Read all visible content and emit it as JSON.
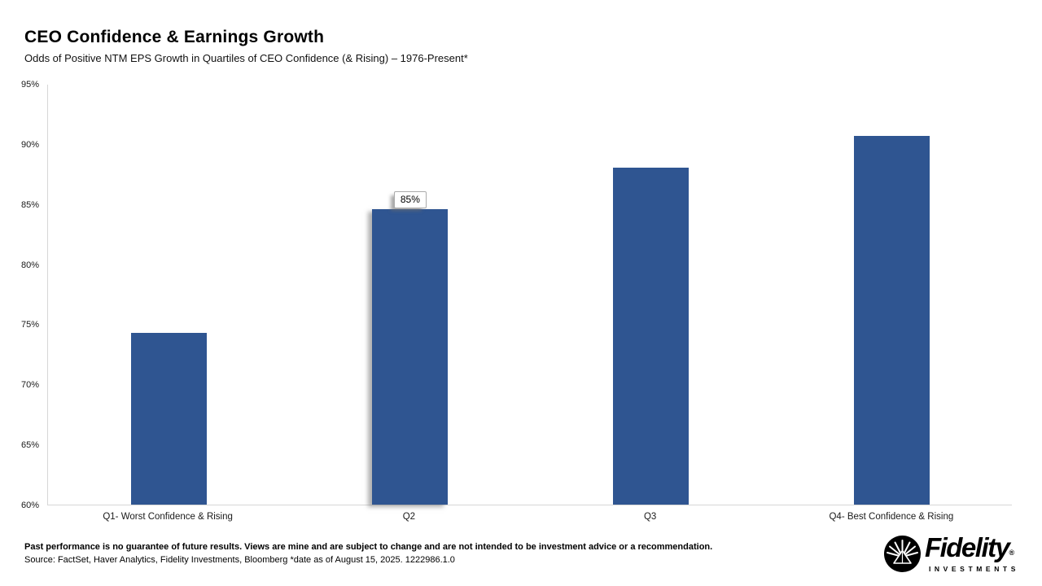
{
  "header": {
    "title": "CEO Confidence & Earnings Growth",
    "subtitle": "Odds of Positive NTM EPS Growth in Quartiles of CEO Confidence (& Rising) – 1976-Present*"
  },
  "chart_data": {
    "type": "bar",
    "title": "CEO Confidence & Earnings Growth",
    "subtitle": "Odds of Positive NTM EPS Growth in Quartiles of CEO Confidence (& Rising) – 1976-Present*",
    "categories": [
      "Q1- Worst Confidence & Rising",
      "Q2",
      "Q3",
      "Q4- Best Confidence & Rising"
    ],
    "values": [
      74.3,
      84.6,
      88.0,
      90.7
    ],
    "xlabel": "",
    "ylabel": "",
    "ylim": [
      60,
      95
    ],
    "ytick_step": 5,
    "ytick_labels": [
      "95%",
      "90%",
      "85%",
      "80%",
      "75%",
      "70%",
      "65%",
      "60%"
    ],
    "grid": false,
    "legend": "none",
    "bar_color": "#2f5591",
    "highlighted_index": 1,
    "data_label": {
      "category_index": 1,
      "text": "85%"
    }
  },
  "footer": {
    "disclaimer": "Past performance is no guarantee of future results. Views are mine and are subject to change and are not intended to be investment advice or a recommendation.",
    "source": "Source: FactSet, Haver Analytics, Fidelity Investments, Bloomberg *date as of August 15, 2025. 1222986.1.0"
  },
  "logo": {
    "brand": "Fidelity",
    "registered": "®",
    "sub": "INVESTMENTS"
  }
}
